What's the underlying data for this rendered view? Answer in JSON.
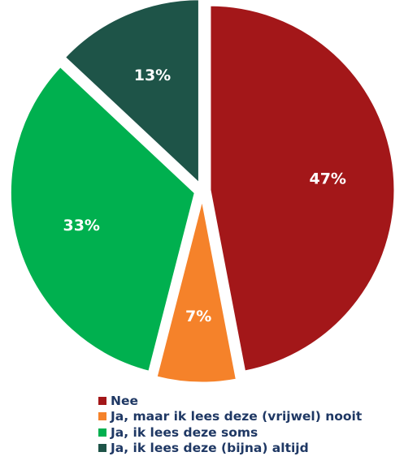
{
  "chart_data": {
    "type": "pie",
    "title": "",
    "start_angle_deg": 0,
    "direction": "clockwise",
    "slices": [
      {
        "label": "Nee",
        "value": 47,
        "display": "47%",
        "color": "#a31719"
      },
      {
        "label": "Ja, maar ik lees deze (vrijwel) nooit",
        "value": 7,
        "display": "7%",
        "color": "#f5822a"
      },
      {
        "label": "Ja, ik lees deze soms",
        "value": 33,
        "display": "33%",
        "color": "#00b04f"
      },
      {
        "label": "Ja, ik lees deze (bijna) altijd",
        "value": 13,
        "display": "13%",
        "color": "#1e5448"
      }
    ],
    "label_color": "#ffffff",
    "legend": {
      "position": "bottom",
      "text_color": "#1f3864",
      "items": [
        "Nee",
        "Ja, maar ik lees deze (vrijwel) nooit",
        "Ja, ik lees deze soms",
        "Ja, ik lees deze (bijna) altijd"
      ]
    }
  }
}
